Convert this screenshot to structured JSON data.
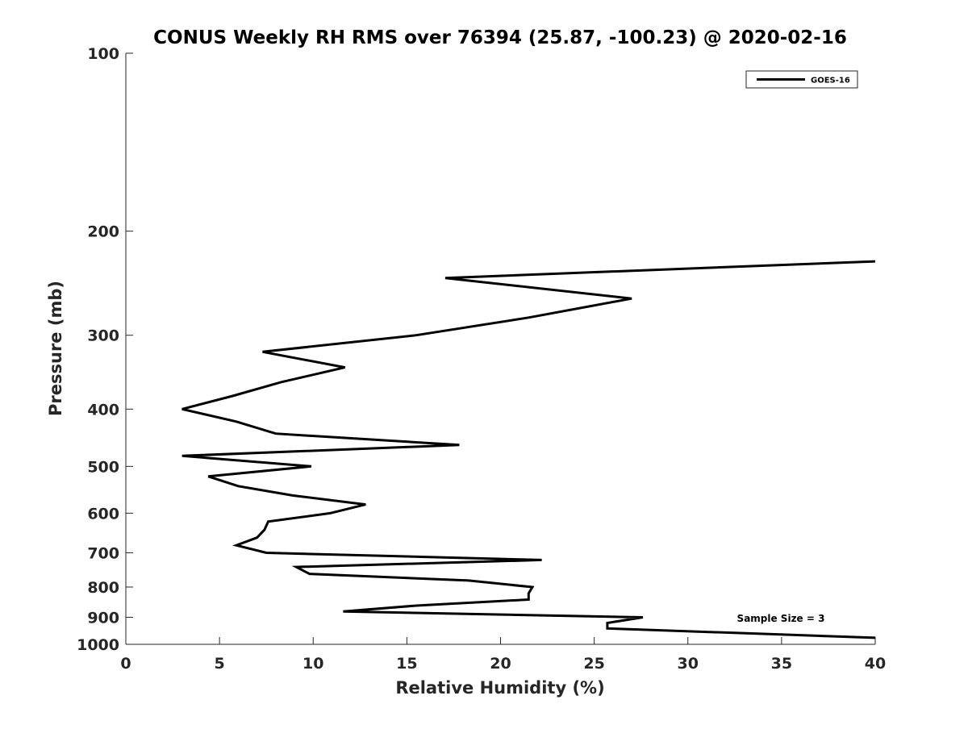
{
  "chart_data": {
    "type": "line",
    "title": "CONUS Weekly RH RMS over 76394 (25.87, -100.23) @ 2020-02-16",
    "xlabel": "Relative Humidity (%)",
    "ylabel": "Pressure (mb)",
    "xlim": [
      0,
      40
    ],
    "ylim": [
      100,
      1000
    ],
    "yscale": "log",
    "yreversed": true,
    "grid": false,
    "xticks": [
      "0",
      "5",
      "10",
      "15",
      "20",
      "25",
      "30",
      "35",
      "40"
    ],
    "yticks": [
      "100",
      "200",
      "300",
      "400",
      "500",
      "600",
      "700",
      "800",
      "900",
      "1000"
    ],
    "legend": {
      "placement": "top-right",
      "entries": [
        "GOES-16"
      ]
    },
    "annotation": "Sample Size = 3",
    "series": [
      {
        "name": "GOES-16",
        "color": "#000000",
        "points": [
          [
            40,
            225
          ],
          [
            17.05,
            240
          ],
          [
            27.0,
            260
          ],
          [
            21.5,
            280
          ],
          [
            15.5,
            300
          ],
          [
            7.3,
            320
          ],
          [
            11.7,
            340
          ],
          [
            8.3,
            360
          ],
          [
            5.7,
            380
          ],
          [
            3.0,
            400
          ],
          [
            5.9,
            420
          ],
          [
            8.0,
            440
          ],
          [
            17.8,
            460
          ],
          [
            3.0,
            480
          ],
          [
            9.9,
            500
          ],
          [
            4.4,
            520
          ],
          [
            6.0,
            540
          ],
          [
            8.9,
            560
          ],
          [
            12.8,
            580
          ],
          [
            10.9,
            600
          ],
          [
            7.6,
            620
          ],
          [
            7.4,
            640
          ],
          [
            7.0,
            660
          ],
          [
            5.9,
            680
          ],
          [
            7.5,
            700
          ],
          [
            22.2,
            720
          ],
          [
            9.1,
            740
          ],
          [
            9.8,
            760
          ],
          [
            18.3,
            780
          ],
          [
            21.7,
            800
          ],
          [
            21.5,
            820
          ],
          [
            21.5,
            840
          ],
          [
            15.5,
            860
          ],
          [
            11.6,
            880
          ],
          [
            27.6,
            900
          ],
          [
            25.7,
            920
          ],
          [
            25.7,
            940
          ],
          [
            40,
            975
          ]
        ]
      }
    ]
  }
}
